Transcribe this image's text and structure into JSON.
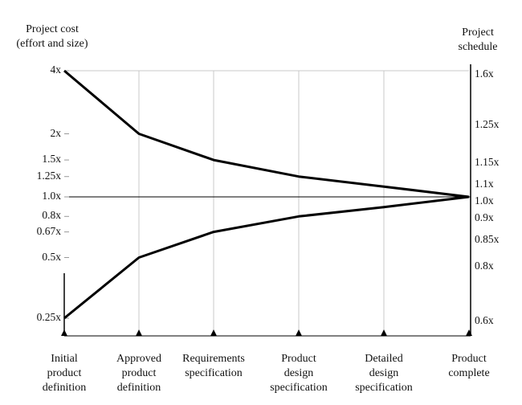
{
  "chart_data": {
    "type": "line",
    "left_axis_title": "Project cost\n(effort and size)",
    "right_axis_title": "Project\nschedule",
    "categories": [
      "Initial\nproduct\ndefinition",
      "Approved\nproduct\ndefinition",
      "Requirements\nspecification",
      "Product\ndesign\nspecification",
      "Detailed\ndesign\nspecification",
      "Product\ncomplete"
    ],
    "left_ticks": [
      {
        "label": "4x",
        "value": 4
      },
      {
        "label": "2x",
        "value": 2
      },
      {
        "label": "1.5x",
        "value": 1.5
      },
      {
        "label": "1.25x",
        "value": 1.25
      },
      {
        "label": "1.0x",
        "value": 1.0
      },
      {
        "label": "0.8x",
        "value": 0.8
      },
      {
        "label": "0.67x",
        "value": 0.67
      },
      {
        "label": "0.5x",
        "value": 0.5
      },
      {
        "label": "0.25x",
        "value": 0.25
      }
    ],
    "right_ticks": [
      {
        "label": "1.6x",
        "value": 1.6
      },
      {
        "label": "1.25x",
        "value": 1.25
      },
      {
        "label": "1.15x",
        "value": 1.15
      },
      {
        "label": "1.1x",
        "value": 1.1
      },
      {
        "label": "1.0x",
        "value": 1.0
      },
      {
        "label": "0.9x",
        "value": 0.9
      },
      {
        "label": "0.85x",
        "value": 0.85
      },
      {
        "label": "0.8x",
        "value": 0.8
      },
      {
        "label": "0.6x",
        "value": 0.6
      }
    ],
    "scale": "log",
    "ylim": [
      0.25,
      4
    ],
    "grid": "vertical",
    "series": [
      {
        "values": [
          4,
          2,
          1.5,
          1.25,
          1.12,
          1.0
        ]
      },
      {
        "values": [
          0.25,
          0.5,
          0.67,
          0.8,
          0.89,
          1.0
        ]
      }
    ],
    "colors": {
      "line": "#000000",
      "grid": "#c8c8c8",
      "axis": "#000000"
    }
  }
}
